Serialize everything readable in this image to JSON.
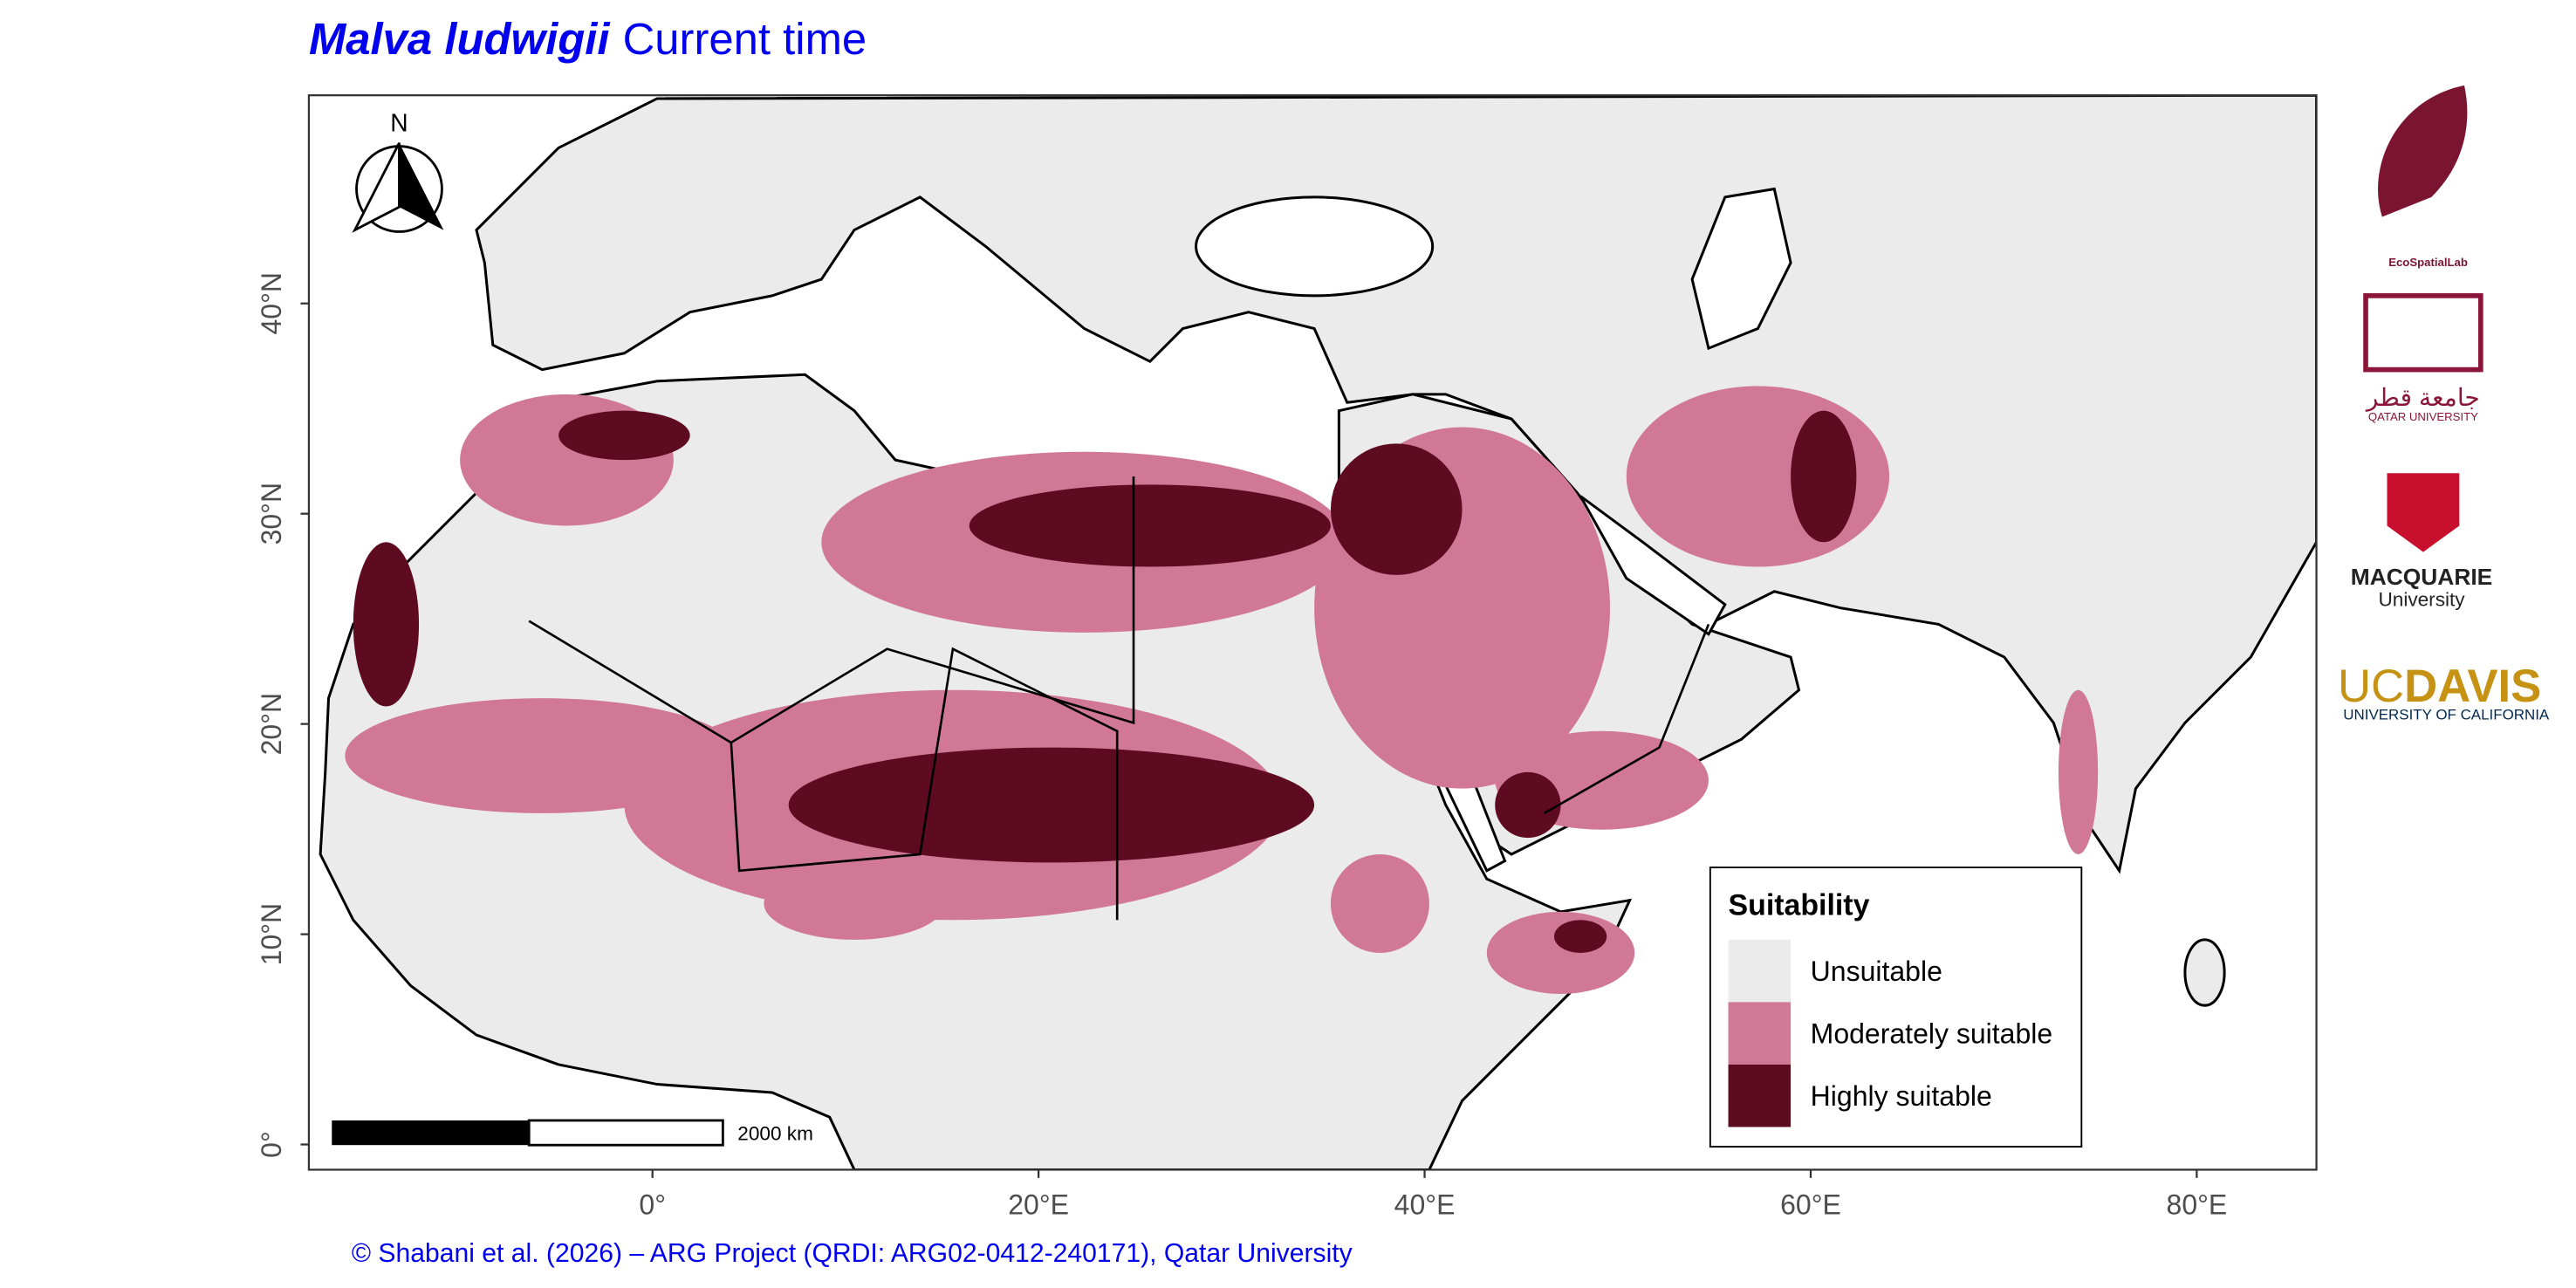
{
  "title": {
    "species": "Malva ludwigii",
    "period": "Current time"
  },
  "map": {
    "xlim": [
      -17.8,
      86.2
    ],
    "ylim": [
      -1.2,
      49.9
    ],
    "xticks": [
      {
        "value": 0,
        "label": "0°"
      },
      {
        "value": 20,
        "label": "20°E"
      },
      {
        "value": 40,
        "label": "40°E"
      },
      {
        "value": 60,
        "label": "60°E"
      },
      {
        "value": 80,
        "label": "80°E"
      }
    ],
    "yticks": [
      {
        "value": 0,
        "label": "0°"
      },
      {
        "value": 10,
        "label": "10°N"
      },
      {
        "value": 20,
        "label": "20°N"
      },
      {
        "value": 30,
        "label": "30°N"
      },
      {
        "value": 40,
        "label": "40°N"
      }
    ]
  },
  "legend": {
    "title": "Suitability",
    "items": [
      {
        "label": "Unsuitable",
        "color": "#ebebeb"
      },
      {
        "label": "Moderately suitable",
        "color": "#d07896"
      },
      {
        "label": "Highly suitable",
        "color": "#5e0b22"
      }
    ]
  },
  "north_arrow": "N",
  "scale_bar": "2000 km",
  "credit": "© Shabani et al. (2026) – ARG Project (QRDI: ARG02-0412-240171), Qatar University",
  "logos": {
    "ecospatial": "EcoSpatialLab",
    "qatar_ar": "جامعة قطر",
    "qatar_en": "QATAR UNIVERSITY",
    "macquarie": "MACQUARIE",
    "macquarie_sub": "University",
    "ucdavis_uc": "UC",
    "ucdavis_davis": "DAVIS",
    "ucdavis_sub": "UNIVERSITY OF CALIFORNIA"
  }
}
